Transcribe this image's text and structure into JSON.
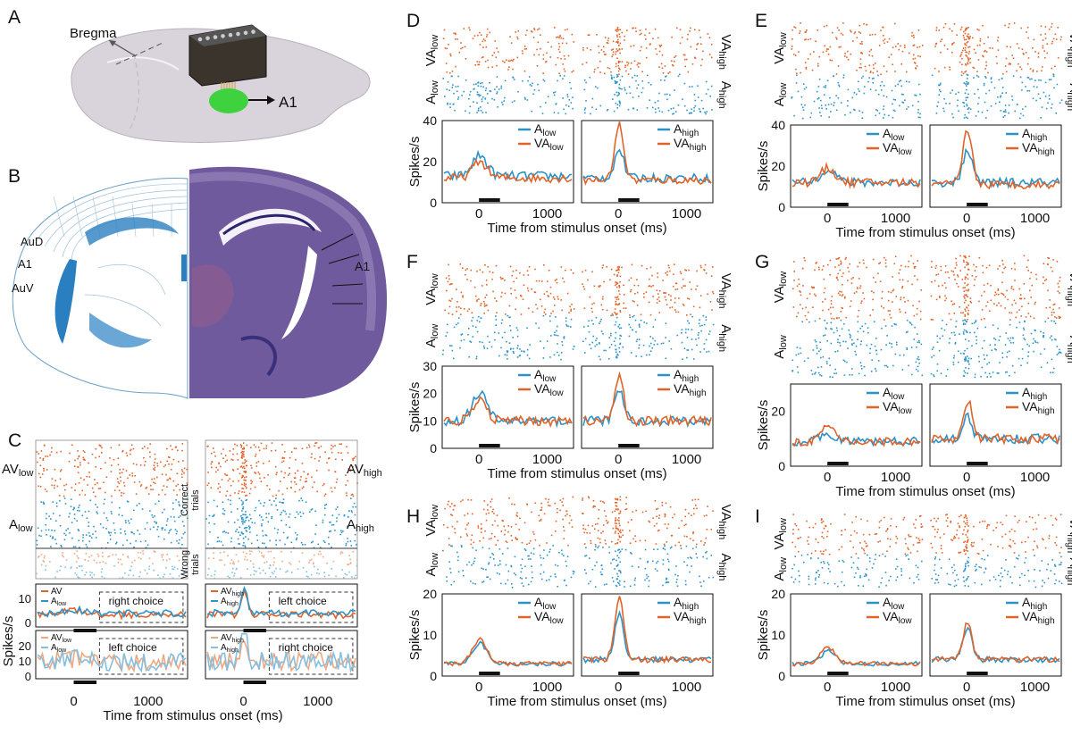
{
  "colors": {
    "orange": "#e0642a",
    "blue": "#2c93c9",
    "light_orange": "#eca882",
    "light_blue": "#85bfdf",
    "green": "#3fd23f",
    "brain": "#d9d3dc",
    "histology": "#6f5a9d",
    "atlas_blue": "#2a7fc1"
  },
  "panel_labels": [
    "A",
    "B",
    "C",
    "D",
    "E",
    "F",
    "G",
    "H",
    "I"
  ],
  "panel_a": {
    "bregma": "Bregma",
    "target": "A1"
  },
  "panel_b": {
    "regions": [
      "AuD",
      "A1",
      "AuV"
    ],
    "histology_label": "A1"
  },
  "panel_c": {
    "rows_left": [
      "AV",
      "low",
      "A",
      "low"
    ],
    "rows_right": [
      "AV",
      "high",
      "A",
      "high"
    ],
    "correct_trials": [
      "Correct",
      "trials"
    ],
    "wrong_trials": [
      "Wrong",
      "trials"
    ],
    "legend_left_top": [
      [
        "AV",
        ""
      ],
      [
        "A",
        "low"
      ]
    ],
    "legend_left_bottom": [
      [
        "AV",
        "low"
      ],
      [
        "A",
        "low"
      ]
    ],
    "legend_right_top": [
      [
        "AV",
        "high"
      ],
      [
        "A",
        "high"
      ]
    ],
    "legend_right_bottom": [
      [
        "AV",
        "high"
      ],
      [
        "A",
        "high"
      ]
    ],
    "choice_labels": [
      "right choice",
      "left choice",
      "left choice",
      "right choice"
    ],
    "yticks_top": [
      "10",
      "0"
    ],
    "yticks_bottom": [
      "20",
      "10",
      "0"
    ],
    "xticks": [
      "0",
      "1000"
    ],
    "ylabel": "Spikes/s",
    "xlabel": "Time from stimulus onset (ms)"
  },
  "small_panels": [
    {
      "id": "D",
      "raster_left": [
        [
          "VA",
          "low"
        ],
        [
          "A",
          "low"
        ]
      ],
      "raster_right": [
        [
          "VA",
          "high"
        ],
        [
          "A",
          "high"
        ]
      ],
      "legend_left": [
        [
          "A",
          "low"
        ],
        [
          "VA",
          "low"
        ]
      ],
      "legend_right": [
        [
          "A",
          "high"
        ],
        [
          "VA",
          "high"
        ]
      ],
      "yticks": [
        "40",
        "20",
        "0"
      ],
      "ymax": 40
    },
    {
      "id": "E",
      "raster_left": [
        [
          "VA",
          "low"
        ],
        [
          "A",
          "low"
        ]
      ],
      "raster_right": [
        [
          "VA",
          "high"
        ],
        [
          "A",
          "high"
        ]
      ],
      "legend_left": [
        [
          "A",
          "low"
        ],
        [
          "VA",
          "low"
        ]
      ],
      "legend_right": [
        [
          "A",
          "high"
        ],
        [
          "VA",
          "high"
        ]
      ],
      "yticks": [
        "40",
        "20",
        "0"
      ],
      "ymax": 40
    },
    {
      "id": "F",
      "raster_left": [
        [
          "VA",
          "low"
        ],
        [
          "A",
          "low"
        ]
      ],
      "raster_right": [
        [
          "VA",
          "high"
        ],
        [
          "A",
          "high"
        ]
      ],
      "legend_left": [
        [
          "A",
          "low"
        ],
        [
          "VA",
          "low"
        ]
      ],
      "legend_right": [
        [
          "A",
          "high"
        ],
        [
          "VA",
          "high"
        ]
      ],
      "yticks": [
        "30",
        "20",
        "10",
        "0"
      ],
      "ymax": 30
    },
    {
      "id": "G",
      "raster_left": [
        [
          "VA",
          "low"
        ],
        [
          "A",
          "low"
        ]
      ],
      "raster_right": [
        [
          "VA",
          "high"
        ],
        [
          "A",
          "high"
        ]
      ],
      "legend_left": [
        [
          "A",
          "low"
        ],
        [
          "VA",
          "low"
        ]
      ],
      "legend_right": [
        [
          "A",
          "high"
        ],
        [
          "VA",
          "high"
        ]
      ],
      "yticks": [
        "20",
        "0"
      ],
      "ymax": 30
    },
    {
      "id": "H",
      "raster_left": [
        [
          "VA",
          "low"
        ],
        [
          "A",
          "low"
        ]
      ],
      "raster_right": [
        [
          "VA",
          "high"
        ],
        [
          "A",
          "high"
        ]
      ],
      "legend_left": [
        [
          "A",
          "low"
        ],
        [
          "VA",
          "low"
        ]
      ],
      "legend_right": [
        [
          "A",
          "high"
        ],
        [
          "VA",
          "high"
        ]
      ],
      "yticks": [
        "20",
        "10",
        "0"
      ],
      "ymax": 20
    },
    {
      "id": "I",
      "raster_left": [
        [
          "VA",
          "low"
        ],
        [
          "A",
          "low"
        ]
      ],
      "raster_right": [
        [
          "VA",
          "high"
        ],
        [
          "A",
          "high"
        ]
      ],
      "legend_left": [
        [
          "A",
          "low"
        ],
        [
          "VA",
          "low"
        ]
      ],
      "legend_right": [
        [
          "A",
          "high"
        ],
        [
          "VA",
          "high"
        ]
      ],
      "yticks": [
        "20",
        "10",
        "0"
      ],
      "ymax": 20
    }
  ],
  "small_axis": {
    "xticks": [
      "0",
      "1000"
    ],
    "ylabel": "Spikes/s",
    "xlabel": "Time from stimulus onset (ms)"
  },
  "chart_data": [
    {
      "type": "line",
      "panel": "D",
      "x_range_ms": [
        -500,
        1400
      ],
      "ylim": [
        0,
        40
      ],
      "series": [
        {
          "name": "A low",
          "peak": 23,
          "baseline": 13
        },
        {
          "name": "VA low",
          "peak": 20,
          "baseline": 12
        },
        {
          "name": "A high",
          "peak": 26,
          "baseline": 12
        },
        {
          "name": "VA high",
          "peak": 38,
          "baseline": 11
        }
      ]
    },
    {
      "type": "line",
      "panel": "E",
      "x_range_ms": [
        -500,
        1400
      ],
      "ylim": [
        0,
        40
      ],
      "series": [
        {
          "name": "A low",
          "peak": 19,
          "baseline": 12
        },
        {
          "name": "VA low",
          "peak": 19,
          "baseline": 12
        },
        {
          "name": "A high",
          "peak": 28,
          "baseline": 12
        },
        {
          "name": "VA high",
          "peak": 38,
          "baseline": 11
        }
      ]
    },
    {
      "type": "line",
      "panel": "F",
      "x_range_ms": [
        -500,
        1400
      ],
      "ylim": [
        0,
        30
      ],
      "series": [
        {
          "name": "A low",
          "peak": 20,
          "baseline": 10
        },
        {
          "name": "VA low",
          "peak": 17,
          "baseline": 10
        },
        {
          "name": "A high",
          "peak": 22,
          "baseline": 10
        },
        {
          "name": "VA high",
          "peak": 26,
          "baseline": 10
        }
      ]
    },
    {
      "type": "line",
      "panel": "G",
      "x_range_ms": [
        -500,
        1400
      ],
      "ylim": [
        0,
        30
      ],
      "series": [
        {
          "name": "A low",
          "peak": 12,
          "baseline": 9
        },
        {
          "name": "VA low",
          "peak": 14,
          "baseline": 9
        },
        {
          "name": "A high",
          "peak": 18,
          "baseline": 10
        },
        {
          "name": "VA high",
          "peak": 24,
          "baseline": 10
        }
      ]
    },
    {
      "type": "line",
      "panel": "H",
      "x_range_ms": [
        -500,
        1400
      ],
      "ylim": [
        0,
        20
      ],
      "series": [
        {
          "name": "A low",
          "peak": 8,
          "baseline": 3
        },
        {
          "name": "VA low",
          "peak": 9,
          "baseline": 3
        },
        {
          "name": "A high",
          "peak": 15,
          "baseline": 4
        },
        {
          "name": "VA high",
          "peak": 19,
          "baseline": 4
        }
      ]
    },
    {
      "type": "line",
      "panel": "I",
      "x_range_ms": [
        -500,
        1400
      ],
      "ylim": [
        0,
        20
      ],
      "series": [
        {
          "name": "A low",
          "peak": 6,
          "baseline": 3
        },
        {
          "name": "VA low",
          "peak": 7,
          "baseline": 3
        },
        {
          "name": "A high",
          "peak": 12,
          "baseline": 4
        },
        {
          "name": "VA high",
          "peak": 13,
          "baseline": 4
        }
      ]
    }
  ]
}
